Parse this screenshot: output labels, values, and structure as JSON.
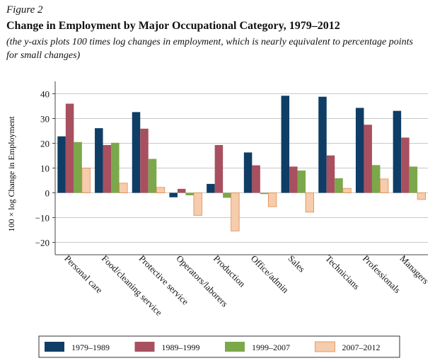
{
  "figure_label": "Figure 2",
  "chart_data": {
    "type": "bar",
    "title": "Change in Employment by Major Occupational Category, 1979–2012",
    "subtitle": "(the y-axis plots 100 times log changes in employment, which is nearly equivalent to percentage points for small changes)",
    "xlabel": "",
    "ylabel": "100 × log Change in Employment",
    "ylim": [
      -25,
      45
    ],
    "yticks": [
      40,
      30,
      20,
      10,
      0,
      -10,
      -20
    ],
    "ytick_labels": [
      "40",
      "30",
      "20",
      "10",
      "0",
      "−10",
      "−20"
    ],
    "grid": true,
    "legend_position": "bottom",
    "categories": [
      "Personal care",
      "Food/cleaning service",
      "Protective service",
      "Operators/laborers",
      "Production",
      "Office/admin",
      "Sales",
      "Technicians",
      "Professionals",
      "Managers"
    ],
    "series": [
      {
        "name": "1979–1989",
        "color": "#0f3d66",
        "values": [
          22.8,
          26.1,
          32.6,
          -1.8,
          3.6,
          16.3,
          39.2,
          38.8,
          34.3,
          33.1
        ]
      },
      {
        "name": "1989–1999",
        "color": "#a8505f",
        "values": [
          36.0,
          19.3,
          25.9,
          1.6,
          19.3,
          11.1,
          10.6,
          15.1,
          27.5,
          22.3
        ]
      },
      {
        "name": "1999–2007",
        "color": "#7ba84a",
        "values": [
          20.5,
          20.2,
          13.7,
          -1.0,
          -2.0,
          -0.5,
          9.0,
          5.9,
          11.2,
          10.6
        ]
      },
      {
        "name": "2007–2012",
        "color": "#f5ccac",
        "values": [
          10.0,
          3.9,
          2.2,
          -9.1,
          -15.4,
          -5.6,
          -7.8,
          1.8,
          5.6,
          -2.7
        ]
      }
    ]
  }
}
